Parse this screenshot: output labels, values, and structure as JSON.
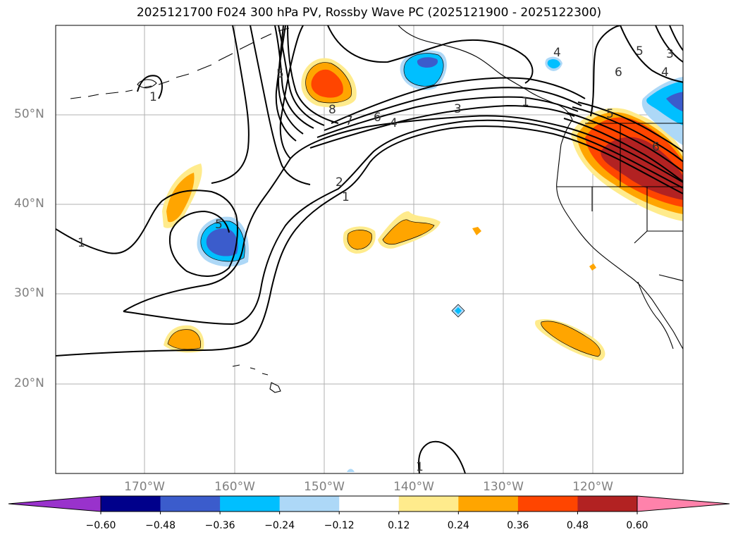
{
  "title": "2025121700 F024 300 hPa PV, Rossby Wave PC (2025121900 - 2025122300)",
  "lat_labels": [
    "50°N",
    "40°N",
    "30°N",
    "20°N"
  ],
  "lon_labels": [
    "170°W",
    "160°W",
    "150°W",
    "140°W",
    "130°W",
    "120°W"
  ],
  "contour_labels": [
    "1",
    "1",
    "1",
    "1",
    "2",
    "3",
    "4",
    "5",
    "6",
    "7",
    "8",
    "5",
    "6",
    "4",
    "5",
    "6",
    "3",
    "4",
    "5",
    "1"
  ],
  "colorbar": {
    "ticks": [
      "−0.60",
      "−0.48",
      "−0.36",
      "−0.24",
      "−0.12",
      "0.12",
      "0.24",
      "0.36",
      "0.48",
      "0.60"
    ],
    "colors": [
      "#9932cc",
      "#00008b",
      "#3b5ccc",
      "#00bfff",
      "#add8f7",
      "#ffffff",
      "#ffeb8c",
      "#ffa500",
      "#ff4500",
      "#b22222",
      "#ff82ab"
    ]
  },
  "colors": {
    "shade_pos_1": "#ffeb8c",
    "shade_pos_2": "#ffa500",
    "shade_pos_3": "#ff4500",
    "shade_pos_4": "#b22222",
    "shade_neg_1": "#add8f7",
    "shade_neg_2": "#00bfff",
    "shade_neg_3": "#3b5ccc",
    "grid": "#b0b0b0",
    "axis_label": "#808080"
  }
}
